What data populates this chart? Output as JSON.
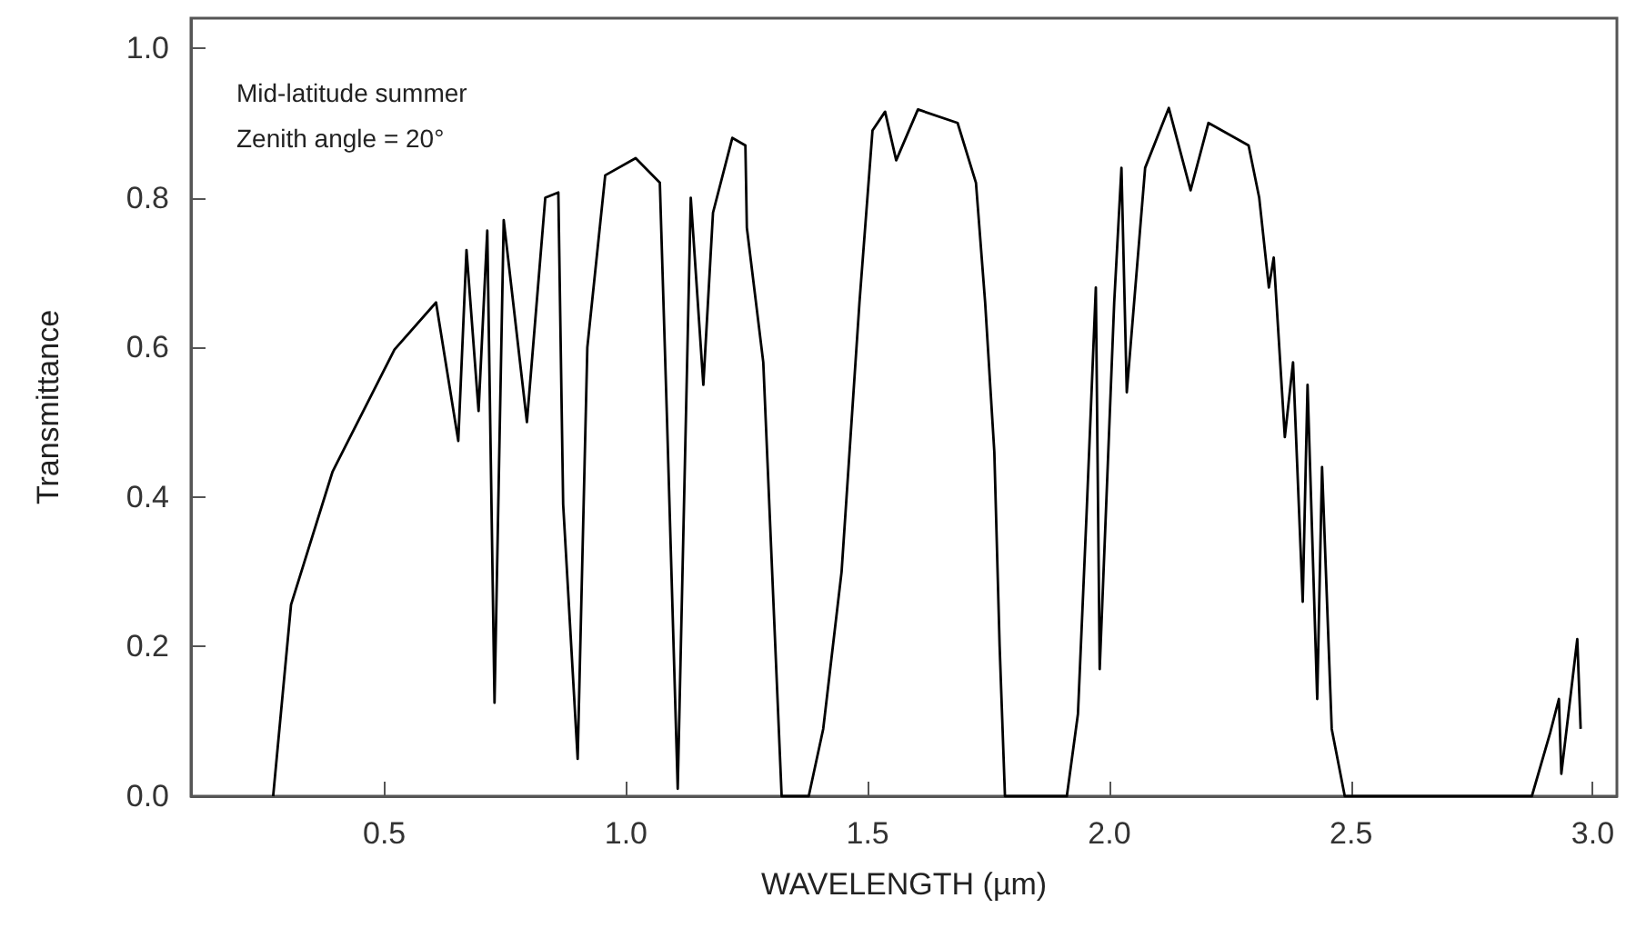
{
  "chart_data": {
    "type": "line",
    "xlabel": "WAVELENGTH (µm)",
    "ylabel": "Transmittance",
    "marker": "none",
    "annotations": [
      "Mid-latitude summer",
      "Zenith angle = 20°"
    ],
    "xlim": [
      0.1,
      3.05
    ],
    "xticks": [
      0.5,
      {
        "value": 1,
        "label": "1.0"
      },
      1.5,
      {
        "value": 2,
        "label": "2.0"
      },
      2.5,
      {
        "value": 3,
        "label": "3.0"
      }
    ],
    "ylim": [
      0,
      1.04
    ],
    "yticks": [
      {
        "value": 0,
        "label": "0.0"
      },
      0.2,
      0.4,
      0.6,
      0.8,
      {
        "value": 1,
        "label": "1.0"
      }
    ],
    "series": [
      {
        "color": "#000000",
        "x": [
          0.27,
          0.307,
          0.393,
          0.521,
          0.607,
          0.653,
          0.67,
          0.695,
          0.713,
          0.728,
          0.747,
          0.795,
          0.833,
          0.86,
          0.87,
          0.9,
          0.92,
          0.957,
          1.02,
          1.07,
          1.085,
          1.107,
          1.134,
          1.16,
          1.18,
          1.22,
          1.247,
          1.25,
          1.284,
          1.322,
          1.378,
          1.408,
          1.446,
          1.483,
          1.51,
          1.536,
          1.559,
          1.604,
          1.686,
          1.724,
          1.743,
          1.762,
          1.773,
          1.784,
          1.912,
          1.935,
          1.953,
          1.972,
          1.98,
          2.01,
          2.025,
          2.036,
          2.074,
          2.123,
          2.168,
          2.205,
          2.288,
          2.31,
          2.33,
          2.34,
          2.363,
          2.38,
          2.4,
          2.41,
          2.43,
          2.44,
          2.46,
          2.487,
          2.874,
          2.912,
          2.93,
          2.935,
          2.968,
          2.975
        ],
        "values": [
          0,
          0.256,
          0.434,
          0.597,
          0.66,
          0.475,
          0.73,
          0.515,
          0.756,
          0.125,
          0.77,
          0.5,
          0.8,
          0.807,
          0.39,
          0.05,
          0.6,
          0.83,
          0.853,
          0.82,
          0.5,
          0.01,
          0.8,
          0.55,
          0.78,
          0.88,
          0.87,
          0.76,
          0.58,
          0,
          0,
          0.09,
          0.3,
          0.66,
          0.89,
          0.915,
          0.85,
          0.918,
          0.9,
          0.82,
          0.66,
          0.46,
          0.2,
          0,
          0,
          0.11,
          0.38,
          0.68,
          0.17,
          0.66,
          0.84,
          0.54,
          0.84,
          0.92,
          0.81,
          0.9,
          0.87,
          0.8,
          0.68,
          0.72,
          0.48,
          0.58,
          0.26,
          0.55,
          0.13,
          0.44,
          0.09,
          0,
          0,
          0.085,
          0.13,
          0.03,
          0.21,
          0.09
        ]
      }
    ]
  }
}
